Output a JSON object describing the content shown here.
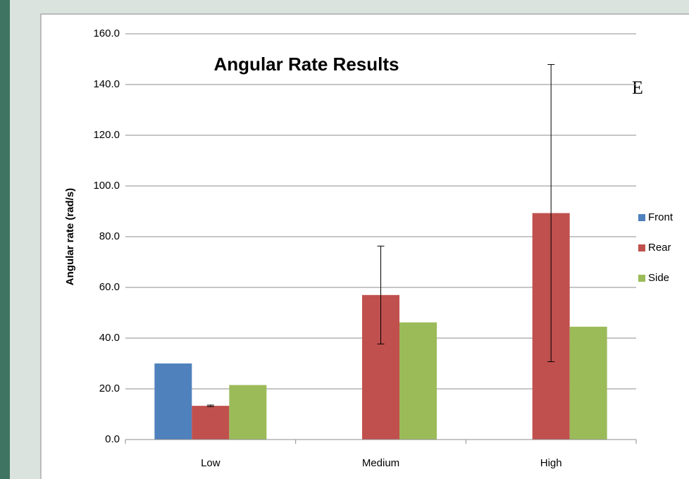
{
  "chart_data": {
    "type": "bar",
    "title": "Angular Rate Results",
    "y_label": "Angular rate (rad/s)",
    "annotation": "E",
    "categories": [
      "Low",
      "Medium",
      "High"
    ],
    "series": [
      {
        "name": "Front",
        "color": "#4f81bd",
        "values": [
          30.0,
          null,
          null
        ],
        "errors": [
          null,
          null,
          null
        ]
      },
      {
        "name": "Rear",
        "color": "#c0504d",
        "values": [
          13.3,
          57.0,
          89.3
        ],
        "errors": [
          0.3,
          19.3,
          58.6
        ]
      },
      {
        "name": "Side",
        "color": "#9bbb59",
        "values": [
          21.5,
          46.2,
          44.5
        ],
        "errors": [
          null,
          null,
          null
        ]
      }
    ],
    "ylim": [
      0,
      160
    ],
    "yticks": [
      {
        "value": 0,
        "label": "0.0"
      },
      {
        "value": 20,
        "label": "20.0"
      },
      {
        "value": 40,
        "label": "40.0"
      },
      {
        "value": 60,
        "label": "60.0"
      },
      {
        "value": 80,
        "label": "80.0"
      },
      {
        "value": 100,
        "label": "100.0"
      },
      {
        "value": 120,
        "label": "120.0"
      },
      {
        "value": 140,
        "label": "140.0"
      },
      {
        "value": 160,
        "label": "160.0"
      }
    ],
    "grid": true,
    "legend": "right"
  }
}
